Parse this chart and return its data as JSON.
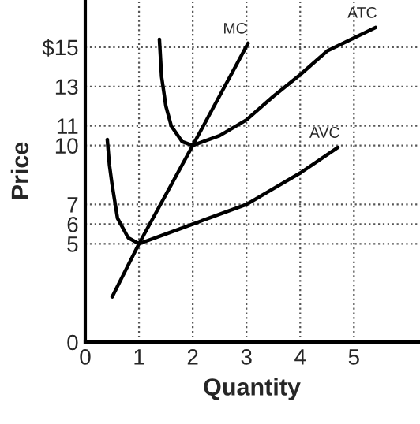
{
  "chart_data": {
    "type": "line",
    "xlabel": "Quantity",
    "ylabel": "Price",
    "xlim": [
      0,
      6.2
    ],
    "ylim": [
      0,
      17.4
    ],
    "xticks": [
      0,
      1,
      2,
      3,
      4,
      5
    ],
    "yticks": [
      0,
      5,
      6,
      7,
      10,
      11,
      13,
      {
        "value": 15,
        "label": "$15"
      }
    ],
    "grid": true,
    "legend": false,
    "marker": "none",
    "line_style": "solid",
    "series": [
      {
        "name": "MC",
        "color": "#000000",
        "x": [
          0.5,
          1,
          2,
          3.03
        ],
        "values": [
          2.3,
          5,
          10,
          15.2
        ]
      },
      {
        "name": "ATC",
        "color": "#000000",
        "x": [
          1.38,
          1.42,
          1.5,
          1.6,
          1.8,
          2,
          2.5,
          3,
          3.5,
          4,
          4.5,
          5.4
        ],
        "values": [
          15.4,
          13.5,
          12,
          11,
          10.2,
          10,
          10.5,
          11.3,
          12.5,
          13.6,
          14.8,
          16
        ]
      },
      {
        "name": "AVC",
        "color": "#000000",
        "x": [
          0.41,
          0.45,
          0.5,
          0.6,
          0.8,
          1,
          1.5,
          2,
          3,
          3.5,
          4,
          4.7
        ],
        "values": [
          10.3,
          9,
          8,
          6.3,
          5.3,
          5,
          5.5,
          6,
          7,
          7.8,
          8.6,
          9.9
        ]
      }
    ]
  }
}
